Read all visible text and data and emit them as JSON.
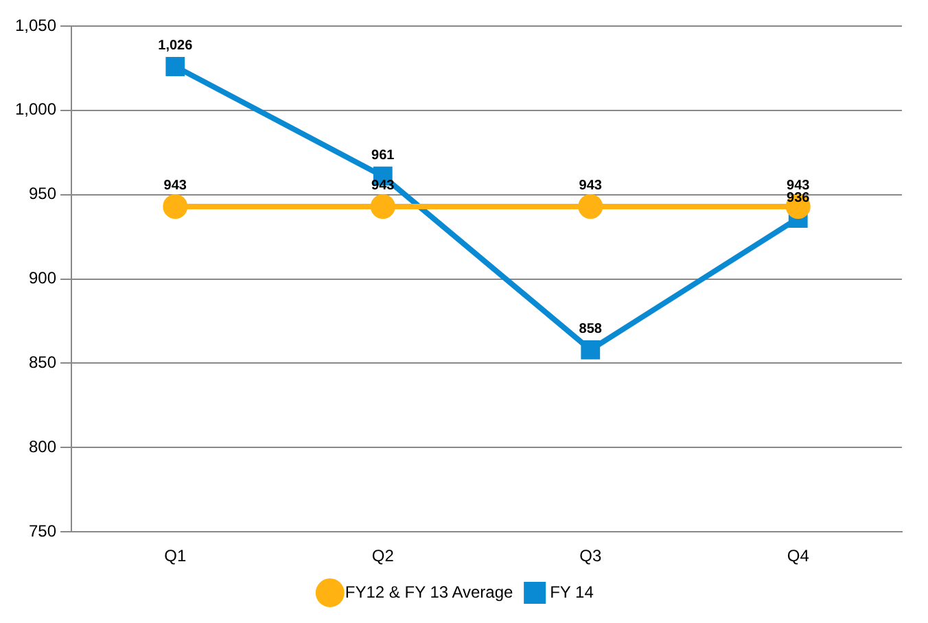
{
  "chart_data": {
    "type": "line",
    "categories": [
      "Q1",
      "Q2",
      "Q3",
      "Q4"
    ],
    "series": [
      {
        "name": "FY12 & FY 13 Average",
        "color": "#ffb212",
        "values": [
          943,
          943,
          943,
          943
        ],
        "value_labels": [
          "943",
          "943",
          "943",
          "943"
        ]
      },
      {
        "name": "FY 14",
        "color": "#0a8ad2",
        "values": [
          1026,
          961,
          858,
          936
        ],
        "value_labels": [
          "1,026",
          "961",
          "858",
          "936"
        ],
        "marker": "square"
      }
    ],
    "ylim": [
      750,
      1050
    ],
    "yticks": [
      750,
      800,
      850,
      900,
      950,
      {
        "value": 1000,
        "label": "1,000"
      },
      {
        "value": 1050,
        "label": "1,050"
      }
    ],
    "grid": "y",
    "legend": "bottom",
    "marker": "circle"
  }
}
